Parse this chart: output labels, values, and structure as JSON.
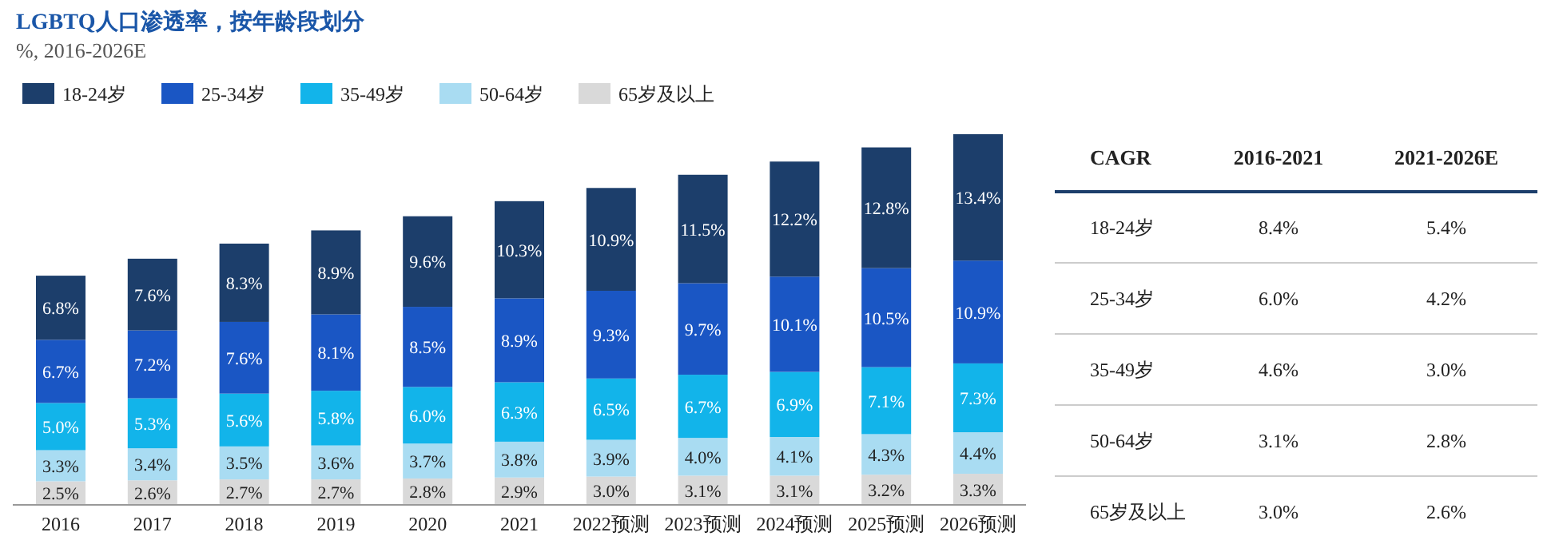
{
  "chart_data": [
    {
      "type": "bar",
      "title": "LGBTQ人口渗透率，按年龄段划分",
      "subtitle": "%, 2016-2026E",
      "stacked": true,
      "legend": "top left",
      "categories": [
        "2016",
        "2017",
        "2018",
        "2019",
        "2020",
        "2021",
        "2022预测",
        "2023预测",
        "2024预测",
        "2025预测",
        "2026预测"
      ],
      "series": [
        {
          "name": "65岁及以上",
          "color": "#d9d9d9",
          "values": [
            2.5,
            2.6,
            2.7,
            2.7,
            2.8,
            2.9,
            3.0,
            3.1,
            3.1,
            3.2,
            3.3
          ],
          "value_labels": [
            "2.5%",
            "2.6%",
            "2.7%",
            "2.7%",
            "2.8%",
            "2.9%",
            "3.0%",
            "3.1%",
            "3.1%",
            "3.2%",
            "3.3%"
          ]
        },
        {
          "name": "50-64岁",
          "color": "#a9dcf2",
          "values": [
            3.3,
            3.4,
            3.5,
            3.6,
            3.7,
            3.8,
            3.9,
            4.0,
            4.1,
            4.3,
            4.4
          ],
          "value_labels": [
            "3.3%",
            "3.4%",
            "3.5%",
            "3.6%",
            "3.7%",
            "3.8%",
            "3.9%",
            "4.0%",
            "4.1%",
            "4.3%",
            "4.4%"
          ]
        },
        {
          "name": "35-49岁",
          "color": "#12b4ea",
          "values": [
            5.0,
            5.3,
            5.6,
            5.8,
            6.0,
            6.3,
            6.5,
            6.7,
            6.9,
            7.1,
            7.3
          ],
          "value_labels": [
            "5.0%",
            "5.3%",
            "5.6%",
            "5.8%",
            "6.0%",
            "6.3%",
            "6.5%",
            "6.7%",
            "6.9%",
            "7.1%",
            "7.3%"
          ]
        },
        {
          "name": "25-34岁",
          "color": "#1a56c4",
          "values": [
            6.7,
            7.2,
            7.6,
            8.1,
            8.5,
            8.9,
            9.3,
            9.7,
            10.1,
            10.5,
            10.9
          ],
          "value_labels": [
            "6.7%",
            "7.2%",
            "7.6%",
            "8.1%",
            "8.5%",
            "8.9%",
            "9.3%",
            "9.7%",
            "10.1%",
            "10.5%",
            "10.9%"
          ]
        },
        {
          "name": "18-24岁",
          "color": "#1c3e6b",
          "values": [
            6.8,
            7.6,
            8.3,
            8.9,
            9.6,
            10.3,
            10.9,
            11.5,
            12.2,
            12.8,
            13.4
          ],
          "value_labels": [
            "6.8%",
            "7.6%",
            "8.3%",
            "8.9%",
            "9.6%",
            "10.3%",
            "10.9%",
            "11.5%",
            "12.2%",
            "12.8%",
            "13.4%"
          ]
        }
      ]
    },
    {
      "type": "other",
      "annotations": [
        "CAGR",
        "2016-2021",
        "2021-2026E",
        "18-24岁",
        "8.4%",
        "5.4%",
        "25-34岁",
        "6.0%",
        "4.2%",
        "35-49岁",
        "4.6%",
        "3.0%",
        "50-64岁",
        "3.1%",
        "2.8%",
        "65岁及以上",
        "3.0%",
        "2.6%"
      ]
    }
  ]
}
